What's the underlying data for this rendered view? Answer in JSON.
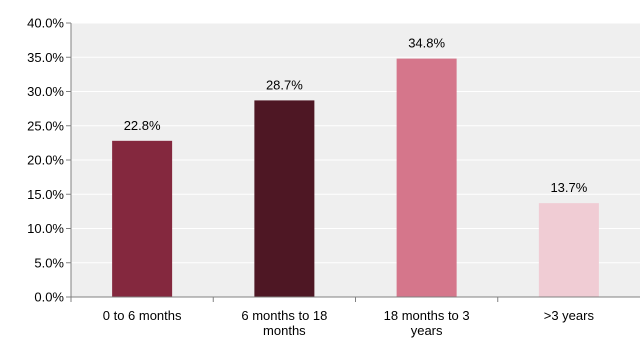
{
  "chart_data": {
    "type": "bar",
    "title": "",
    "xlabel": "",
    "ylabel": "",
    "categories": [
      [
        "0 to 6 months"
      ],
      [
        "6 months to 18",
        "months"
      ],
      [
        "18 months to 3",
        "years"
      ],
      [
        ">3 years"
      ]
    ],
    "values": [
      22.8,
      28.7,
      34.8,
      13.7
    ],
    "value_labels": [
      "22.8%",
      "28.7%",
      "34.8%",
      "13.7%"
    ],
    "ylim": [
      0,
      40
    ],
    "yticks": [
      0,
      5,
      10,
      15,
      20,
      25,
      30,
      35,
      40
    ],
    "ytick_labels": [
      "0.0%",
      "5.0%",
      "10.0%",
      "15.0%",
      "20.0%",
      "25.0%",
      "30.0%",
      "35.0%",
      "40.0%"
    ],
    "grid": true,
    "legend": "none",
    "colors": [
      "#84283e",
      "#4e1724",
      "#d5768b",
      "#f0ccd4"
    ],
    "plot_background": "#efefef",
    "grid_color": "#ffffff",
    "axis_color": "#808080"
  }
}
